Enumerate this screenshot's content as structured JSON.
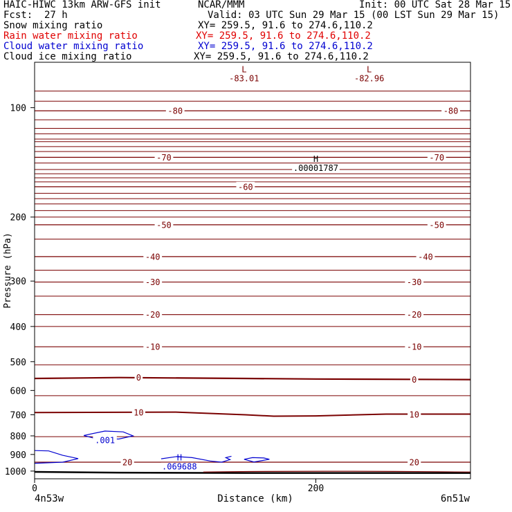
{
  "header": {
    "title_left": "HAIC-HIWC 13km ARW-GFS init",
    "title_center": "NCAR/MMM",
    "init": "Init: 00 UTC Sat 28 Mar 15",
    "fcst_label": "Fcst:",
    "fcst_value": "27 h",
    "valid": "Valid: 03 UTC Sun 29 Mar 15 (00 LST Sun 29 Mar 15)",
    "fields": [
      {
        "name": "Snow mixing ratio",
        "xy": "XY= 259.5, 91.6 to 274.6,110.2",
        "color": "#000000"
      },
      {
        "name": "Rain water mixing ratio",
        "xy": "XY= 259.5, 91.6 to 274.6,110.2",
        "color": "#e00000"
      },
      {
        "name": "Cloud water mixing ratio",
        "xy": "XY= 259.5, 91.6 to 274.6,110.2",
        "color": "#0000d0"
      },
      {
        "name": "Cloud ice mixing ratio",
        "xy": "XY= 259.5, 91.6 to 274.6,110.2",
        "color": "#000000"
      }
    ]
  },
  "chart_data": {
    "type": "contour-cross-section",
    "ylabel": "Pressure (hPa)",
    "xlabel": "Distance (km)",
    "y_scale": "log",
    "ylim": [
      1050,
      75
    ],
    "xlim": [
      0,
      310
    ],
    "y_ticks": [
      100,
      200,
      300,
      400,
      500,
      600,
      700,
      800,
      900,
      1000
    ],
    "x_ticks": [
      0,
      200
    ],
    "x_endpoint_left": "4n53w",
    "x_endpoint_right": "6n51w",
    "isotherm_color": "#7a0000",
    "cloud_color": "#0000d0",
    "temperature_labels": [
      {
        "text": "-80",
        "x": 100,
        "p": 102
      },
      {
        "text": "-80",
        "x": 296,
        "p": 102
      },
      {
        "text": "-70",
        "x": 92,
        "p": 137
      },
      {
        "text": "-70",
        "x": 286,
        "p": 137
      },
      {
        "text": "-60",
        "x": 150,
        "p": 165
      },
      {
        "text": "-50",
        "x": 92,
        "p": 210
      },
      {
        "text": "-50",
        "x": 286,
        "p": 210
      },
      {
        "text": "-40",
        "x": 84,
        "p": 257
      },
      {
        "text": "-40",
        "x": 278,
        "p": 257
      },
      {
        "text": "-30",
        "x": 84,
        "p": 302
      },
      {
        "text": "-30",
        "x": 270,
        "p": 302
      },
      {
        "text": "-20",
        "x": 84,
        "p": 371
      },
      {
        "text": "-20",
        "x": 270,
        "p": 371
      },
      {
        "text": "-10",
        "x": 84,
        "p": 455
      },
      {
        "text": "-10",
        "x": 270,
        "p": 455
      },
      {
        "text": "0",
        "x": 74,
        "p": 553
      },
      {
        "text": "0",
        "x": 270,
        "p": 560
      },
      {
        "text": "10",
        "x": 74,
        "p": 690
      },
      {
        "text": "10",
        "x": 270,
        "p": 698
      },
      {
        "text": "20",
        "x": 66,
        "p": 945
      },
      {
        "text": "20",
        "x": 270,
        "p": 945
      }
    ],
    "extrema": [
      {
        "mark": "L",
        "value": "-83.01",
        "x": 149,
        "p": 80
      },
      {
        "mark": "L",
        "value": "-82.96",
        "x": 238,
        "p": 80
      },
      {
        "mark": "H",
        "value": ".00001787",
        "x": 200,
        "p": 141
      },
      {
        "mark": "H",
        "value": ".069688",
        "x": 103,
        "p": 935
      }
    ],
    "cloud_labels": [
      {
        "text": ".001",
        "x": 50,
        "p": 822
      }
    ],
    "isotherms": [
      {
        "label": "-80",
        "points": [
          [
            0,
            102
          ],
          [
            310,
            102
          ]
        ]
      },
      {
        "label": "-70",
        "points": [
          [
            0,
            137
          ],
          [
            310,
            137
          ]
        ]
      },
      {
        "label": "-60",
        "points": [
          [
            0,
            165
          ],
          [
            310,
            165
          ]
        ]
      },
      {
        "label": "-50",
        "points": [
          [
            0,
            210
          ],
          [
            310,
            210
          ]
        ]
      },
      {
        "label": "-40",
        "points": [
          [
            0,
            257
          ],
          [
            310,
            257
          ]
        ]
      },
      {
        "label": "-30",
        "points": [
          [
            0,
            302
          ],
          [
            310,
            302
          ]
        ]
      },
      {
        "label": "-20",
        "points": [
          [
            0,
            371
          ],
          [
            310,
            371
          ]
        ]
      },
      {
        "label": "-10",
        "points": [
          [
            0,
            455
          ],
          [
            310,
            455
          ]
        ]
      },
      {
        "label": "0",
        "points": [
          [
            0,
            556
          ],
          [
            60,
            553
          ],
          [
            150,
            556
          ],
          [
            200,
            558
          ],
          [
            310,
            560
          ]
        ]
      },
      {
        "label": "10",
        "points": [
          [
            0,
            690
          ],
          [
            100,
            688
          ],
          [
            150,
            700
          ],
          [
            170,
            706
          ],
          [
            200,
            705
          ],
          [
            250,
            697
          ],
          [
            310,
            697
          ]
        ]
      },
      {
        "label": "20",
        "points": [
          [
            0,
            945
          ],
          [
            310,
            945
          ]
        ]
      }
    ]
  }
}
